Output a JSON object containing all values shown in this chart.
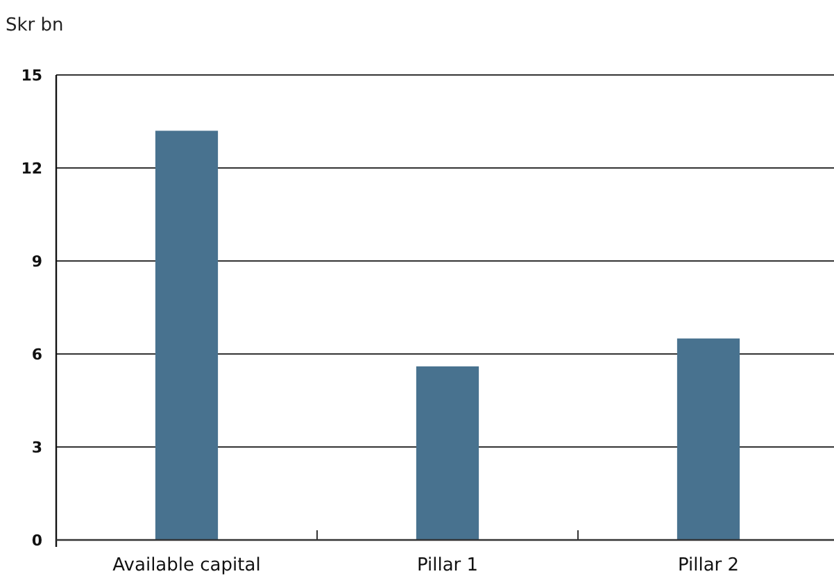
{
  "chart_data": {
    "type": "bar",
    "ylabel": "Skr bn",
    "categories": [
      "Available capital",
      "Pillar 1",
      "Pillar 2"
    ],
    "values": [
      13.2,
      5.6,
      6.5
    ],
    "color": "#48728f",
    "ylim": [
      0,
      15
    ],
    "yticks": [
      0,
      3,
      6,
      9,
      12,
      15
    ],
    "grid": "y"
  }
}
